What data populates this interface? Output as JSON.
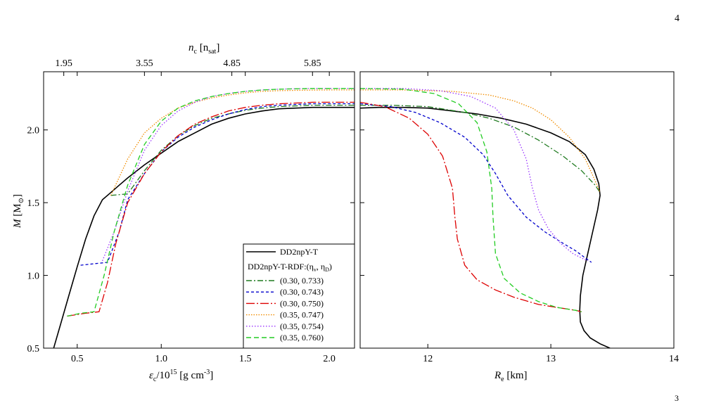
{
  "page": {
    "number": "4",
    "corner_mark": "3"
  },
  "chart_data": [
    {
      "type": "line",
      "xlabel_main": "ε",
      "xlabel_sub": "c",
      "xlabel_rest": "/10",
      "xlabel_exp": "15",
      "xlabel_unit": " [g cm",
      "xlabel_unit_exp": "-3",
      "xlabel_close": "]",
      "ylabel_main": "M",
      "ylabel_unit": " [M",
      "ylabel_unit_sub": "⊙",
      "ylabel_close": "]",
      "top_xlabel_main": "n",
      "top_xlabel_sub": "c",
      "top_xlabel_unit": " [n",
      "top_xlabel_unit_sub": "sat",
      "top_xlabel_close": "]",
      "xlim": [
        0.3,
        2.15
      ],
      "ylim": [
        0.5,
        2.4
      ],
      "xticks": [
        "0.5",
        "1.0",
        "1.5",
        "2.0"
      ],
      "xtick_values": [
        0.5,
        1.0,
        1.5,
        2.0
      ],
      "yticks": [
        "0.5",
        "1.0",
        "1.5",
        "2.0"
      ],
      "ytick_values": [
        0.5,
        1.0,
        1.5,
        2.0
      ],
      "top_xticks": [
        "1.95",
        "3.55",
        "4.85",
        "5.85"
      ],
      "top_xtick_positions": [
        0.42,
        0.9,
        1.42,
        1.9
      ],
      "legend": {
        "entries": [
          "DD2npY-T",
          "DD2npY-T-RDF:(η",
          "(0.30, 0.733)",
          "(0.30, 0.743)",
          "(0.30, 0.750)",
          "(0.35, 0.747)",
          "(0.35, 0.754)",
          "(0.35, 0.760)"
        ],
        "header_sub1": "v",
        "header_mid": ", η",
        "header_sub2": "D",
        "header_close": ")",
        "placement": "lower-right"
      },
      "series": [
        {
          "name": "DD2npY-T",
          "color": "#000000",
          "dash": "solid",
          "x": [
            0.36,
            0.4,
            0.45,
            0.5,
            0.55,
            0.6,
            0.65,
            0.7,
            0.75,
            0.8,
            0.9,
            1.0,
            1.1,
            1.2,
            1.3,
            1.4,
            1.5,
            1.6,
            1.7,
            1.8,
            1.9,
            2.0,
            2.15
          ],
          "y": [
            0.5,
            0.66,
            0.86,
            1.06,
            1.25,
            1.41,
            1.52,
            1.57,
            1.62,
            1.67,
            1.76,
            1.84,
            1.92,
            1.98,
            2.04,
            2.08,
            2.11,
            2.13,
            2.145,
            2.15,
            2.155,
            2.155,
            2.155
          ]
        },
        {
          "name": "(0.30, 0.733)",
          "color": "#1f7a1f",
          "dash": "8,3,2,3",
          "x": [
            0.7,
            0.8,
            0.9,
            1.0,
            1.1,
            1.2,
            1.3,
            1.4,
            1.5,
            1.6,
            1.7,
            1.8,
            1.9,
            2.0,
            2.15
          ],
          "y": [
            1.55,
            1.56,
            1.72,
            1.86,
            1.96,
            2.03,
            2.08,
            2.11,
            2.135,
            2.15,
            2.16,
            2.165,
            2.17,
            2.17,
            2.17
          ]
        },
        {
          "name": "(0.30, 0.743)",
          "color": "#0000cc",
          "dash": "4,3",
          "x": [
            0.52,
            0.6,
            0.68,
            0.75,
            0.8,
            0.9,
            1.0,
            1.1,
            1.2,
            1.3,
            1.4,
            1.5,
            1.6,
            1.7,
            1.8,
            1.9,
            2.0,
            2.15
          ],
          "y": [
            1.07,
            1.08,
            1.09,
            1.3,
            1.52,
            1.7,
            1.85,
            1.95,
            2.02,
            2.07,
            2.11,
            2.14,
            2.16,
            2.17,
            2.175,
            2.18,
            2.18,
            2.18
          ]
        },
        {
          "name": "(0.30, 0.750)",
          "color": "#dd0000",
          "dash": "12,3,2,3",
          "x": [
            0.44,
            0.55,
            0.63,
            0.68,
            0.73,
            0.8,
            0.9,
            1.0,
            1.1,
            1.2,
            1.3,
            1.4,
            1.5,
            1.6,
            1.7,
            1.8,
            1.9,
            2.0,
            2.15
          ],
          "y": [
            0.72,
            0.74,
            0.75,
            0.95,
            1.22,
            1.5,
            1.7,
            1.85,
            1.96,
            2.04,
            2.09,
            2.13,
            2.155,
            2.17,
            2.18,
            2.185,
            2.19,
            2.19,
            2.19
          ]
        },
        {
          "name": "(0.35, 0.747)",
          "color": "#f08c00",
          "dash": "1.5,2",
          "x": [
            0.7,
            0.8,
            0.9,
            1.0,
            1.1,
            1.2,
            1.3,
            1.4,
            1.5,
            1.6,
            1.7,
            1.8,
            1.9,
            2.0,
            2.15
          ],
          "y": [
            1.55,
            1.8,
            1.98,
            2.08,
            2.15,
            2.19,
            2.22,
            2.24,
            2.255,
            2.265,
            2.27,
            2.272,
            2.274,
            2.275,
            2.275
          ]
        },
        {
          "name": "(0.35, 0.754)",
          "color": "#9933ff",
          "dash": "1.5,2.5",
          "x": [
            0.65,
            0.72,
            0.8,
            0.9,
            1.0,
            1.1,
            1.2,
            1.3,
            1.4,
            1.5,
            1.6,
            1.7,
            1.8,
            1.9,
            2.0,
            2.15
          ],
          "y": [
            1.1,
            1.3,
            1.58,
            1.86,
            2.03,
            2.13,
            2.19,
            2.23,
            2.25,
            2.265,
            2.275,
            2.28,
            2.283,
            2.285,
            2.285,
            2.285
          ]
        },
        {
          "name": "(0.35, 0.760)",
          "color": "#22cc22",
          "dash": "7,4",
          "x": [
            0.44,
            0.52,
            0.6,
            0.66,
            0.72,
            0.8,
            0.9,
            1.0,
            1.1,
            1.2,
            1.3,
            1.4,
            1.5,
            1.6,
            1.7,
            1.8,
            1.9,
            2.0,
            2.15
          ],
          "y": [
            0.72,
            0.74,
            0.75,
            1.0,
            1.3,
            1.62,
            1.9,
            2.06,
            2.15,
            2.2,
            2.23,
            2.25,
            2.265,
            2.275,
            2.28,
            2.283,
            2.285,
            2.285,
            2.285
          ]
        }
      ]
    },
    {
      "type": "line",
      "xlabel_main": "R",
      "xlabel_sub": "e",
      "xlabel_rest": " [km]",
      "xlim": [
        11.45,
        14.0
      ],
      "ylim": [
        0.5,
        2.4
      ],
      "xticks": [
        "12",
        "13",
        "14"
      ],
      "xtick_values": [
        12,
        13,
        14
      ],
      "series": [
        {
          "name": "DD2npY-T",
          "color": "#000000",
          "dash": "solid",
          "x": [
            11.45,
            11.6,
            11.8,
            12.0,
            12.2,
            12.4,
            12.6,
            12.8,
            13.0,
            13.15,
            13.28,
            13.35,
            13.39,
            13.4,
            13.38,
            13.34,
            13.3,
            13.26,
            13.24,
            13.235,
            13.24,
            13.27,
            13.32,
            13.4,
            13.48
          ],
          "y": [
            2.15,
            2.155,
            2.155,
            2.15,
            2.13,
            2.11,
            2.08,
            2.04,
            1.98,
            1.92,
            1.83,
            1.73,
            1.63,
            1.55,
            1.45,
            1.3,
            1.15,
            1.0,
            0.86,
            0.76,
            0.68,
            0.62,
            0.57,
            0.53,
            0.5
          ]
        },
        {
          "name": "(0.30, 0.733)",
          "color": "#1f7a1f",
          "dash": "8,3,2,3",
          "x": [
            11.45,
            11.7,
            12.0,
            12.3,
            12.5,
            12.7,
            12.9,
            13.1,
            13.25,
            13.36,
            13.4
          ],
          "y": [
            2.17,
            2.17,
            2.16,
            2.12,
            2.08,
            2.02,
            1.93,
            1.82,
            1.72,
            1.62,
            1.57
          ]
        },
        {
          "name": "(0.30, 0.743)",
          "color": "#0000cc",
          "dash": "4,3",
          "x": [
            11.45,
            11.7,
            11.9,
            12.1,
            12.3,
            12.45,
            12.55,
            12.65,
            12.8,
            12.95,
            13.1,
            13.2,
            13.28,
            13.33
          ],
          "y": [
            2.18,
            2.16,
            2.12,
            2.05,
            1.95,
            1.83,
            1.7,
            1.55,
            1.4,
            1.3,
            1.22,
            1.17,
            1.12,
            1.09
          ]
        },
        {
          "name": "(0.30, 0.750)",
          "color": "#dd0000",
          "dash": "12,3,2,3",
          "x": [
            11.45,
            11.65,
            11.85,
            12.0,
            12.12,
            12.2,
            12.22,
            12.24,
            12.3,
            12.4,
            12.55,
            12.7,
            12.9,
            13.05,
            13.2,
            13.25
          ],
          "y": [
            2.19,
            2.16,
            2.08,
            1.97,
            1.82,
            1.6,
            1.4,
            1.25,
            1.07,
            0.97,
            0.9,
            0.85,
            0.8,
            0.78,
            0.76,
            0.75
          ]
        },
        {
          "name": "(0.35, 0.747)",
          "color": "#f08c00",
          "dash": "1.5,2",
          "x": [
            11.45,
            11.8,
            12.2,
            12.5,
            12.7,
            12.85,
            13.0,
            13.15,
            13.28,
            13.36,
            13.4
          ],
          "y": [
            2.275,
            2.275,
            2.265,
            2.24,
            2.2,
            2.15,
            2.07,
            1.95,
            1.8,
            1.65,
            1.57
          ]
        },
        {
          "name": "(0.35, 0.754)",
          "color": "#9933ff",
          "dash": "1.5,2.5",
          "x": [
            11.45,
            11.8,
            12.1,
            12.35,
            12.55,
            12.7,
            12.8,
            12.85,
            12.9,
            12.98,
            13.08,
            13.18,
            13.25,
            13.3
          ],
          "y": [
            2.285,
            2.285,
            2.27,
            2.23,
            2.15,
            2.0,
            1.8,
            1.6,
            1.45,
            1.32,
            1.22,
            1.15,
            1.12,
            1.1
          ]
        },
        {
          "name": "(0.35, 0.760)",
          "color": "#22cc22",
          "dash": "7,4",
          "x": [
            11.45,
            11.8,
            12.05,
            12.25,
            12.4,
            12.48,
            12.52,
            12.53,
            12.55,
            12.62,
            12.75,
            12.9,
            13.05,
            13.2,
            13.25
          ],
          "y": [
            2.285,
            2.28,
            2.25,
            2.18,
            2.05,
            1.85,
            1.6,
            1.4,
            1.15,
            0.98,
            0.88,
            0.82,
            0.78,
            0.76,
            0.75
          ]
        }
      ]
    }
  ]
}
